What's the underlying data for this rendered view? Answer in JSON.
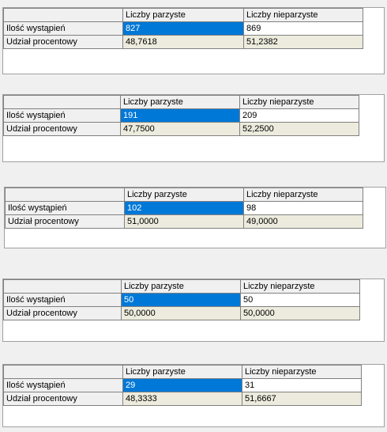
{
  "accent_selected": "#0078d7",
  "readonly_fill": "#ecebdd",
  "grids": [
    {
      "columns": [
        "Liczby parzyste",
        "Liczby nieparzyste"
      ],
      "rows": [
        {
          "label": "Ilość wystąpień",
          "even": "827",
          "odd": "869"
        },
        {
          "label": "Udział procentowy",
          "even": "48,7618",
          "odd": "51,2382"
        }
      ]
    },
    {
      "columns": [
        "Liczby parzyste",
        "Liczby nieparzyste"
      ],
      "rows": [
        {
          "label": "Ilość wystąpień",
          "even": "191",
          "odd": "209"
        },
        {
          "label": "Udział procentowy",
          "even": "47,7500",
          "odd": "52,2500"
        }
      ]
    },
    {
      "columns": [
        "Liczby parzyste",
        "Liczby nieparzyste"
      ],
      "rows": [
        {
          "label": "Ilość wystąpień",
          "even": "102",
          "odd": "98"
        },
        {
          "label": "Udział procentowy",
          "even": "51,0000",
          "odd": "49,0000"
        }
      ]
    },
    {
      "columns": [
        "Liczby parzyste",
        "Liczby nieparzyste"
      ],
      "rows": [
        {
          "label": "Ilość wystąpień",
          "even": "50",
          "odd": "50"
        },
        {
          "label": "Udział procentowy",
          "even": "50,0000",
          "odd": "50,0000"
        }
      ]
    },
    {
      "columns": [
        "Liczby parzyste",
        "Liczby nieparzyste"
      ],
      "rows": [
        {
          "label": "Ilość wystąpień",
          "even": "29",
          "odd": "31"
        },
        {
          "label": "Udział procentowy",
          "even": "48,3333",
          "odd": "51,6667"
        }
      ]
    }
  ]
}
